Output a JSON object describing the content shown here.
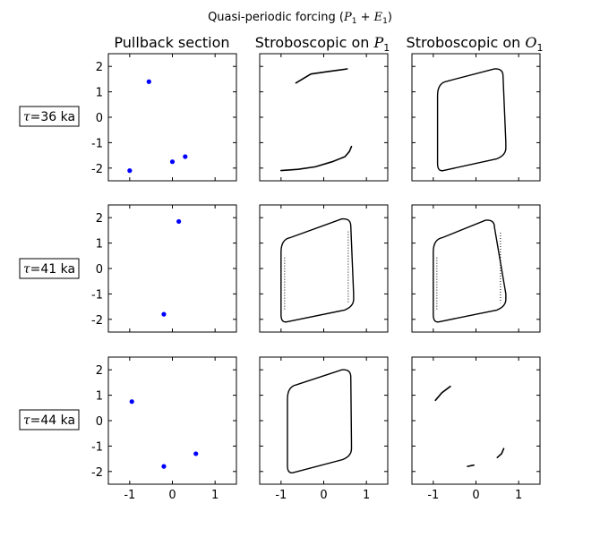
{
  "figure": {
    "title_text": "Quasi-periodic forcing (",
    "title_math_a": "P",
    "title_math_a_sub": "1",
    "title_plus": " + ",
    "title_math_b": "E",
    "title_math_b_sub": "1",
    "title_close": ")"
  },
  "columns": [
    {
      "title_text": "Pullback section",
      "math": "",
      "sub": ""
    },
    {
      "title_text": "Stroboscopic on ",
      "math": "P",
      "sub": "1"
    },
    {
      "title_text": "Stroboscopic on ",
      "math": "O",
      "sub": "1"
    }
  ],
  "rows": [
    {
      "symbol": "τ",
      "value_text": "=36 ka"
    },
    {
      "symbol": "τ",
      "value_text": "=41 ka"
    },
    {
      "symbol": "τ",
      "value_text": "=44 ka"
    }
  ],
  "axes": {
    "xlim": [
      -1.5,
      1.5
    ],
    "ylim": [
      -2.5,
      2.5
    ],
    "xticks": [
      -1,
      0,
      1
    ],
    "xtick_labels": [
      "-1",
      "0",
      "1"
    ],
    "yticks": [
      2,
      1,
      0,
      -1,
      -2
    ],
    "ytick_labels": [
      "2",
      "1",
      "0",
      "-1",
      "-2"
    ]
  },
  "colors": {
    "pullback_points": "#0000ff",
    "trajectory": "#000000"
  },
  "chart_data": [
    {
      "type": "scatter",
      "row": 0,
      "col": 0,
      "series": [
        {
          "x": [
            -0.55,
            -1.0,
            0.0,
            0.3
          ],
          "y": [
            1.4,
            -2.1,
            -1.75,
            -1.55
          ]
        }
      ]
    },
    {
      "type": "scatter",
      "row": 0,
      "col": 1,
      "series": [
        {
          "x": [
            -0.65,
            -0.3,
            0.1,
            0.55
          ],
          "y": [
            1.35,
            1.7,
            1.8,
            1.9
          ]
        },
        {
          "x": [
            -1.0,
            -0.6,
            -0.2,
            0.2,
            0.5,
            0.6,
            0.65
          ],
          "y": [
            -2.1,
            -2.05,
            -1.95,
            -1.75,
            -1.55,
            -1.35,
            -1.15
          ]
        }
      ]
    },
    {
      "type": "line",
      "row": 0,
      "col": 2,
      "shape": "loop",
      "series": [
        {
          "x": [
            -0.9,
            0.55,
            0.7,
            -0.9,
            -0.9
          ],
          "y": [
            1.2,
            1.9,
            -1.0,
            -2.1,
            1.2
          ]
        }
      ]
    },
    {
      "type": "scatter",
      "row": 1,
      "col": 0,
      "series": [
        {
          "x": [
            0.15,
            -0.2
          ],
          "y": [
            1.85,
            -1.8
          ]
        }
      ]
    },
    {
      "type": "line",
      "row": 1,
      "col": 1,
      "shape": "loop",
      "series": [
        {
          "x": [
            -1.0,
            0.55,
            0.7,
            -1.0,
            -1.0
          ],
          "y": [
            1.0,
            1.95,
            -1.0,
            -2.1,
            1.0
          ]
        }
      ]
    },
    {
      "type": "line",
      "row": 1,
      "col": 2,
      "shape": "loop",
      "series": [
        {
          "x": [
            -1.0,
            0.35,
            0.7,
            -1.0,
            -1.0
          ],
          "y": [
            1.0,
            1.9,
            -1.0,
            -2.1,
            1.0
          ]
        }
      ]
    },
    {
      "type": "scatter",
      "row": 2,
      "col": 0,
      "series": [
        {
          "x": [
            -0.95,
            -0.2,
            0.55
          ],
          "y": [
            0.75,
            -1.8,
            -1.3
          ]
        }
      ]
    },
    {
      "type": "line",
      "row": 2,
      "col": 1,
      "shape": "loop",
      "series": [
        {
          "x": [
            -0.85,
            0.55,
            0.65,
            -0.85,
            -0.85
          ],
          "y": [
            1.2,
            2.0,
            -0.9,
            -2.05,
            1.2
          ]
        }
      ]
    },
    {
      "type": "scatter",
      "row": 2,
      "col": 2,
      "series": [
        {
          "x": [
            -0.95,
            -0.8,
            -0.6
          ],
          "y": [
            0.8,
            1.1,
            1.35
          ]
        },
        {
          "x": [
            0.5,
            0.6,
            0.65
          ],
          "y": [
            -1.45,
            -1.3,
            -1.1
          ]
        },
        {
          "x": [
            -0.2,
            -0.05
          ],
          "y": [
            -1.8,
            -1.75
          ]
        }
      ]
    }
  ]
}
